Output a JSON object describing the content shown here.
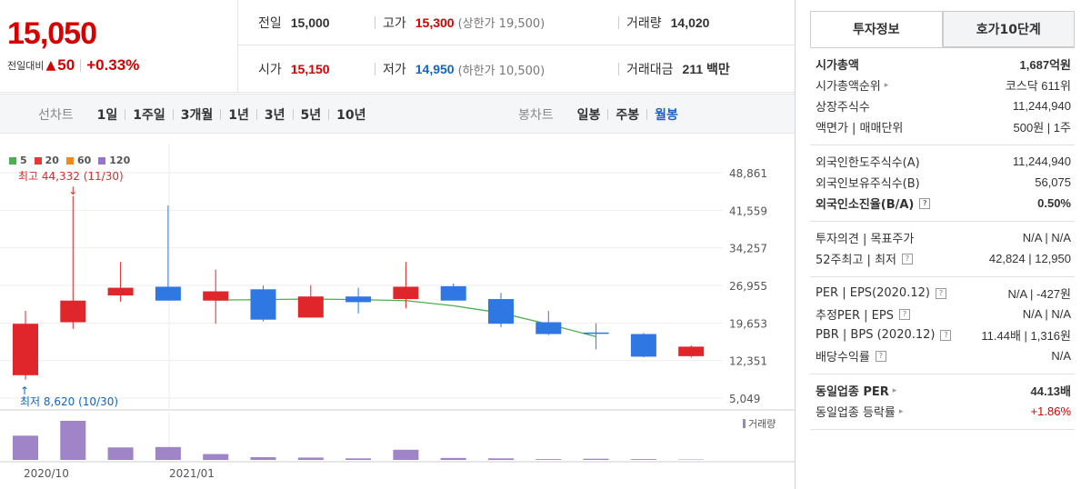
{
  "price": {
    "current": "15,050",
    "change_label": "전일대비",
    "change_arrow": "▲",
    "change_value": "50",
    "change_pct": "+0.33%"
  },
  "summary": {
    "prev_close": {
      "label": "전일",
      "value": "15,000"
    },
    "high": {
      "label": "고가",
      "value": "15,300",
      "sub": "(상한가 19,500)"
    },
    "volume": {
      "label": "거래량",
      "value": "14,020"
    },
    "open": {
      "label": "시가",
      "value": "15,150"
    },
    "low": {
      "label": "저가",
      "value": "14,950",
      "sub": "(하한가 10,500)"
    },
    "amount": {
      "label": "거래대금",
      "value": "211 백만"
    }
  },
  "period_tabs": {
    "title": "선차트",
    "items": [
      "1일",
      "1주일",
      "3개월",
      "1년",
      "3년",
      "5년",
      "10년"
    ]
  },
  "candle_tabs": {
    "title": "봉차트",
    "items": [
      "일봉",
      "주봉",
      "월봉"
    ],
    "active": "월봉"
  },
  "colors": {
    "up": "#e0262a",
    "down": "#2f78e4",
    "ma5": "#4caf50",
    "ma20": "#e53935",
    "ma60": "#f0891e",
    "ma120": "#9575cd",
    "volume": "#9f85c7"
  },
  "chart_data": {
    "type": "candlestick",
    "legend": [
      "5",
      "20",
      "60",
      "120"
    ],
    "y_ticks": [
      "48,861",
      "41,559",
      "34,257",
      "26,955",
      "19,653",
      "12,351",
      "5,049"
    ],
    "y_tick_values": [
      48861,
      41559,
      34257,
      26955,
      19653,
      12351,
      5049
    ],
    "x_labels": [
      "2020/10",
      "2021/01"
    ],
    "high_annotation": "최고 44,332 (11/30)",
    "low_annotation": "최저 8,620 (10/30)",
    "volume_label": "거래량",
    "candles": [
      {
        "open": 9500,
        "close": 19500,
        "high": 22000,
        "low": 8620,
        "volume": 0.62
      },
      {
        "open": 19800,
        "close": 24000,
        "high": 44332,
        "low": 18500,
        "volume": 1.0
      },
      {
        "open": 25000,
        "close": 26500,
        "high": 31500,
        "low": 23800,
        "volume": 0.32
      },
      {
        "open": 26700,
        "close": 24000,
        "high": 42500,
        "low": 24000,
        "volume": 0.33
      },
      {
        "open": 24000,
        "close": 25800,
        "high": 30000,
        "low": 19500,
        "volume": 0.15
      },
      {
        "open": 26200,
        "close": 20300,
        "high": 26900,
        "low": 20000,
        "volume": 0.07
      },
      {
        "open": 20700,
        "close": 24800,
        "high": 27000,
        "low": 20700,
        "volume": 0.06
      },
      {
        "open": 24800,
        "close": 23700,
        "high": 26500,
        "low": 21500,
        "volume": 0.04
      },
      {
        "open": 24300,
        "close": 26700,
        "high": 31500,
        "low": 22500,
        "volume": 0.26
      },
      {
        "open": 26800,
        "close": 24000,
        "high": 27300,
        "low": 24000,
        "volume": 0.05
      },
      {
        "open": 24300,
        "close": 19500,
        "high": 25500,
        "low": 18800,
        "volume": 0.04
      },
      {
        "open": 19800,
        "close": 17500,
        "high": 22000,
        "low": 17300,
        "volume": 0.02
      },
      {
        "open": 17800,
        "close": 17600,
        "high": 19600,
        "low": 14500,
        "volume": 0.03
      },
      {
        "open": 17500,
        "close": 13100,
        "high": 17700,
        "low": 13000,
        "volume": 0.02
      },
      {
        "open": 13200,
        "close": 15050,
        "high": 15300,
        "low": 12950,
        "volume": 0.01
      }
    ],
    "ma_line": [
      24100,
      24200,
      24300,
      24200,
      24000,
      23000,
      21600,
      19400,
      17000
    ],
    "ma_start_index": 4
  },
  "side": {
    "tabs": [
      "투자정보",
      "호가10단계"
    ],
    "sections": [
      [
        {
          "label": "시가총액",
          "value": "1,687억원",
          "label_bold": true,
          "value_bold": true
        },
        {
          "label": "시가총액순위",
          "value": "코스닥 611위",
          "arrow": true
        },
        {
          "label": "상장주식수",
          "value": "11,244,940"
        },
        {
          "label": "액면가 | 매매단위",
          "value": "500원 | 1주"
        }
      ],
      [
        {
          "label": "외국인한도주식수(A)",
          "value": "11,244,940"
        },
        {
          "label": "외국인보유주식수(B)",
          "value": "56,075"
        },
        {
          "label": "외국인소진율(B/A)",
          "value": "0.50%",
          "label_bold": true,
          "value_bold": true,
          "help": true
        }
      ],
      [
        {
          "label": "투자의견 | 목표주가",
          "value": "N/A | N/A"
        },
        {
          "label": "52주최고 | 최저",
          "value": "42,824 | 12,950",
          "help": true
        }
      ],
      [
        {
          "label": "PER | EPS(2020.12)",
          "value": "N/A | -427원",
          "help": true
        },
        {
          "label": "추정PER | EPS",
          "value": "N/A | N/A",
          "help": true
        },
        {
          "label": "PBR | BPS (2020.12)",
          "value": "11.44배 | 1,316원",
          "help": true
        },
        {
          "label": "배당수익률",
          "value": "N/A",
          "help": true
        }
      ],
      [
        {
          "label": "동일업종 PER",
          "value": "44.13배",
          "label_bold": true,
          "value_bold": true,
          "arrow": true
        },
        {
          "label": "동일업종 등락률",
          "value": "+1.86%",
          "arrow": true,
          "value_red": true
        }
      ]
    ]
  }
}
